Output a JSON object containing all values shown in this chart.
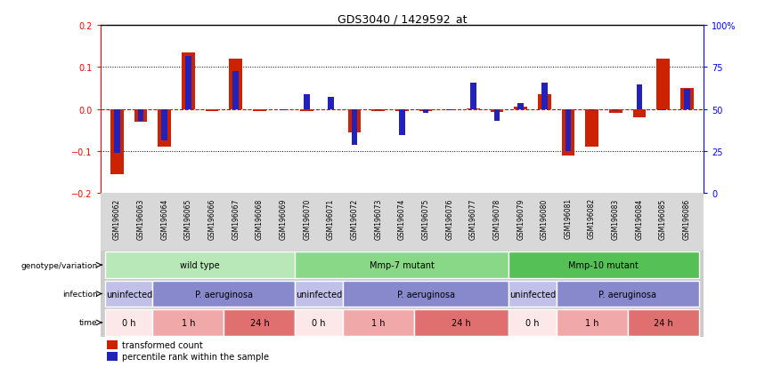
{
  "title": "GDS3040 / 1429592_at",
  "samples": [
    "GSM196062",
    "GSM196063",
    "GSM196064",
    "GSM196065",
    "GSM196066",
    "GSM196067",
    "GSM196068",
    "GSM196069",
    "GSM196070",
    "GSM196071",
    "GSM196072",
    "GSM196073",
    "GSM196074",
    "GSM196075",
    "GSM196076",
    "GSM196077",
    "GSM196078",
    "GSM196079",
    "GSM196080",
    "GSM196081",
    "GSM196082",
    "GSM196083",
    "GSM196084",
    "GSM196085",
    "GSM196086"
  ],
  "red_values": [
    -0.155,
    -0.03,
    -0.09,
    0.135,
    -0.005,
    0.12,
    -0.005,
    0.0,
    -0.005,
    0.0,
    -0.055,
    -0.005,
    -0.005,
    -0.005,
    0.0,
    0.002,
    -0.008,
    0.005,
    0.035,
    -0.11,
    -0.09,
    -0.01,
    -0.02,
    0.12,
    0.05
  ],
  "blue_values": [
    -0.105,
    -0.028,
    -0.075,
    0.125,
    -0.002,
    0.09,
    -0.002,
    -0.003,
    0.035,
    0.028,
    -0.085,
    -0.003,
    -0.062,
    -0.01,
    -0.003,
    0.063,
    -0.028,
    0.013,
    0.063,
    -0.1,
    -0.003,
    -0.003,
    0.058,
    -0.003,
    0.048
  ],
  "ylim": [
    -0.2,
    0.2
  ],
  "y2lim": [
    0,
    100
  ],
  "yticks": [
    -0.2,
    -0.1,
    0.0,
    0.1,
    0.2
  ],
  "y2ticks": [
    0,
    25,
    50,
    75,
    100
  ],
  "y2ticklabels": [
    "0",
    "25",
    "50",
    "75",
    "100%"
  ],
  "genotype_groups": [
    {
      "label": "wild type",
      "start": 0,
      "end": 7,
      "color": "#b8e8b8"
    },
    {
      "label": "Mmp-7 mutant",
      "start": 8,
      "end": 16,
      "color": "#88d888"
    },
    {
      "label": "Mmp-10 mutant",
      "start": 17,
      "end": 24,
      "color": "#55c055"
    }
  ],
  "infection_groups": [
    {
      "label": "uninfected",
      "start": 0,
      "end": 1,
      "color": "#c0c0e8"
    },
    {
      "label": "P. aeruginosa",
      "start": 2,
      "end": 7,
      "color": "#8888cc"
    },
    {
      "label": "uninfected",
      "start": 8,
      "end": 9,
      "color": "#c0c0e8"
    },
    {
      "label": "P. aeruginosa",
      "start": 10,
      "end": 16,
      "color": "#8888cc"
    },
    {
      "label": "uninfected",
      "start": 17,
      "end": 18,
      "color": "#c0c0e8"
    },
    {
      "label": "P. aeruginosa",
      "start": 19,
      "end": 24,
      "color": "#8888cc"
    }
  ],
  "time_groups": [
    {
      "label": "0 h",
      "start": 0,
      "end": 1,
      "color": "#fce8e8"
    },
    {
      "label": "1 h",
      "start": 2,
      "end": 4,
      "color": "#f0a8a8"
    },
    {
      "label": "24 h",
      "start": 5,
      "end": 7,
      "color": "#e07070"
    },
    {
      "label": "0 h",
      "start": 8,
      "end": 9,
      "color": "#fce8e8"
    },
    {
      "label": "1 h",
      "start": 10,
      "end": 12,
      "color": "#f0a8a8"
    },
    {
      "label": "24 h",
      "start": 13,
      "end": 16,
      "color": "#e07070"
    },
    {
      "label": "0 h",
      "start": 17,
      "end": 18,
      "color": "#fce8e8"
    },
    {
      "label": "1 h",
      "start": 19,
      "end": 21,
      "color": "#f0a8a8"
    },
    {
      "label": "24 h",
      "start": 22,
      "end": 24,
      "color": "#e07070"
    }
  ],
  "row_labels": [
    "genotype/variation",
    "infection",
    "time"
  ],
  "red_bar_width": 0.55,
  "blue_bar_width": 0.25,
  "red_color": "#cc2200",
  "blue_color": "#2222bb",
  "legend_red": "transformed count",
  "legend_blue": "percentile rank within the sample",
  "zero_line_color": "#cc0000",
  "bg_color": "#ffffff",
  "xtick_bg": "#d8d8d8"
}
